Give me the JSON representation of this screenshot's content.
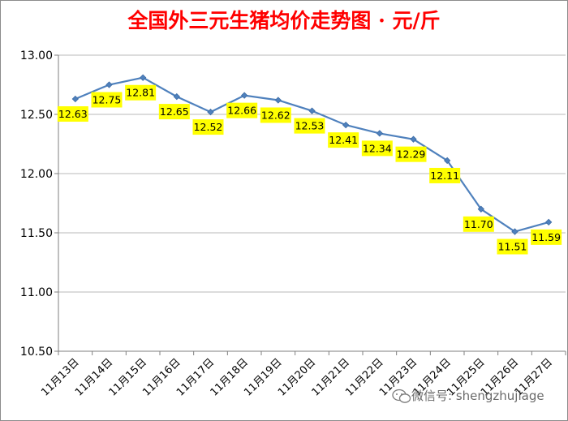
{
  "chart_data": {
    "type": "line",
    "title": "全国外三元生猪均价走势图 · 元/斤",
    "categories": [
      "11月13日",
      "11月14日",
      "11月15日",
      "11月16日",
      "11月17日",
      "11月18日",
      "11月19日",
      "11月20日",
      "11月21日",
      "11月22日",
      "11月23日",
      "11月24日",
      "11月25日",
      "11月26日",
      "11月27日"
    ],
    "values": [
      12.63,
      12.75,
      12.81,
      12.65,
      12.52,
      12.66,
      12.62,
      12.53,
      12.41,
      12.34,
      12.29,
      12.11,
      11.7,
      11.51,
      11.59
    ],
    "data_labels": [
      "12.63",
      "12.75",
      "12.81",
      "12.65",
      "12.52",
      "12.66",
      "12.62",
      "12.53",
      "12.41",
      "12.34",
      "12.29",
      "12.11",
      "11.70",
      "11.51",
      "11.59"
    ],
    "yticks": [
      "10.50",
      "11.00",
      "11.50",
      "12.00",
      "12.50",
      "13.00"
    ],
    "ylim": [
      10.5,
      13.0
    ],
    "xlabel": "",
    "ylabel": "",
    "grid": true,
    "legend": "none",
    "colors": {
      "line": "#4f81bd",
      "label_bg": "#ffff00",
      "title": "#ff0000"
    }
  },
  "watermark": "微信号: shengzhujiage"
}
